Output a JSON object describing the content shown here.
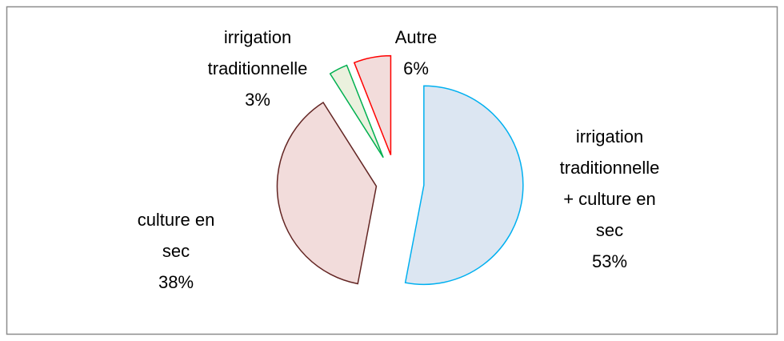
{
  "chart_data": {
    "type": "pie",
    "categories": [
      "irrigation traditionnelle + culture en sec",
      "culture en sec",
      "irrigation traditionnelle",
      "Autre"
    ],
    "values": [
      53,
      38,
      3,
      6
    ],
    "value_labels": [
      "53%",
      "38%",
      "3%",
      "6%"
    ],
    "colors": [
      "#dce6f2",
      "#f2dcdb",
      "#ebf1de",
      "#f2dcdb"
    ],
    "edge_colors": [
      "#00b0f0",
      "#632523",
      "#00b050",
      "#ff0000"
    ]
  }
}
